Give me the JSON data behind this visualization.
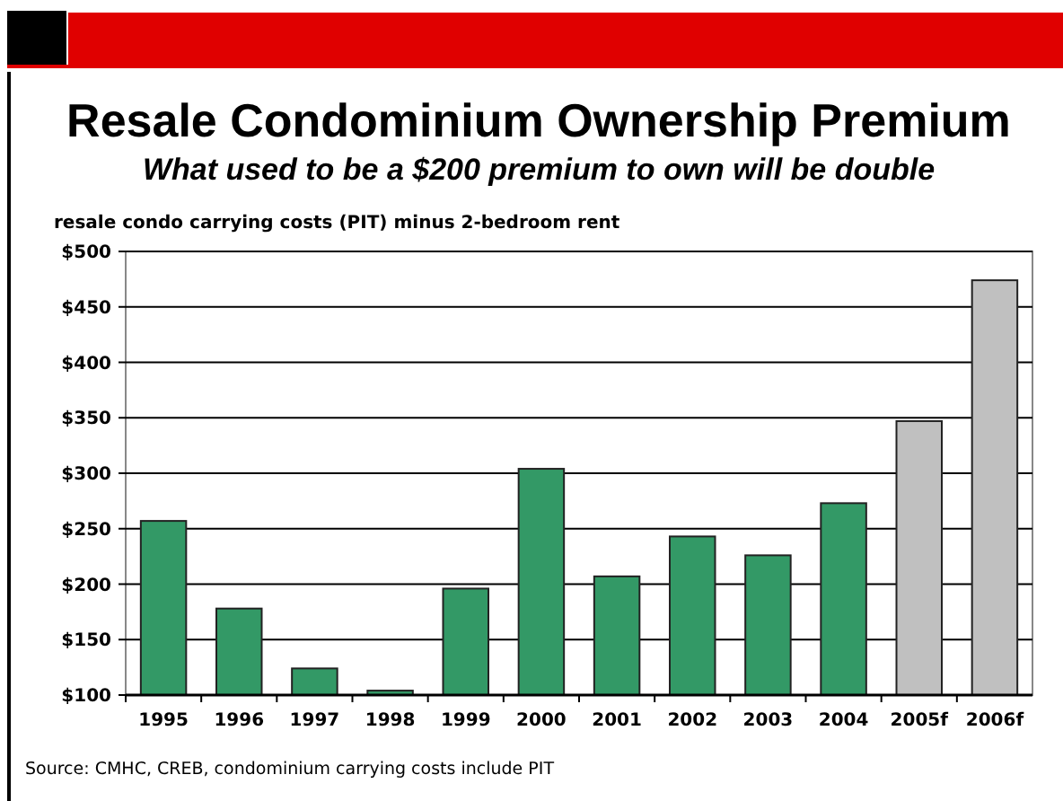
{
  "chart_data": {
    "type": "bar",
    "title": "Resale Condominium Ownership Premium",
    "subtitle": "What used to be a $200 premium to own will be double",
    "ylabel": "resale condo carrying costs (PIT) minus 2-bedroom rent",
    "categories": [
      "1995",
      "1996",
      "1997",
      "1998",
      "1999",
      "2000",
      "2001",
      "2002",
      "2003",
      "2004",
      "2005f",
      "2006f"
    ],
    "values": [
      257,
      178,
      124,
      104,
      196,
      304,
      207,
      243,
      226,
      273,
      347,
      474
    ],
    "colors": [
      "#339966",
      "#339966",
      "#339966",
      "#339966",
      "#339966",
      "#339966",
      "#339966",
      "#339966",
      "#339966",
      "#339966",
      "#c0c0c0",
      "#c0c0c0"
    ],
    "ylim": [
      100,
      500
    ],
    "yticks": [
      {
        "value": 100,
        "label": "$100"
      },
      {
        "value": 150,
        "label": "$150"
      },
      {
        "value": 200,
        "label": "$200"
      },
      {
        "value": 250,
        "label": "$250"
      },
      {
        "value": 300,
        "label": "$300"
      },
      {
        "value": 350,
        "label": "$350"
      },
      {
        "value": 400,
        "label": "$400"
      },
      {
        "value": 450,
        "label": "$450"
      },
      {
        "value": 500,
        "label": "$500"
      }
    ],
    "grid": "y",
    "annotations": [
      "Source: CMHC, CREB, condominium carrying costs include PIT"
    ]
  }
}
